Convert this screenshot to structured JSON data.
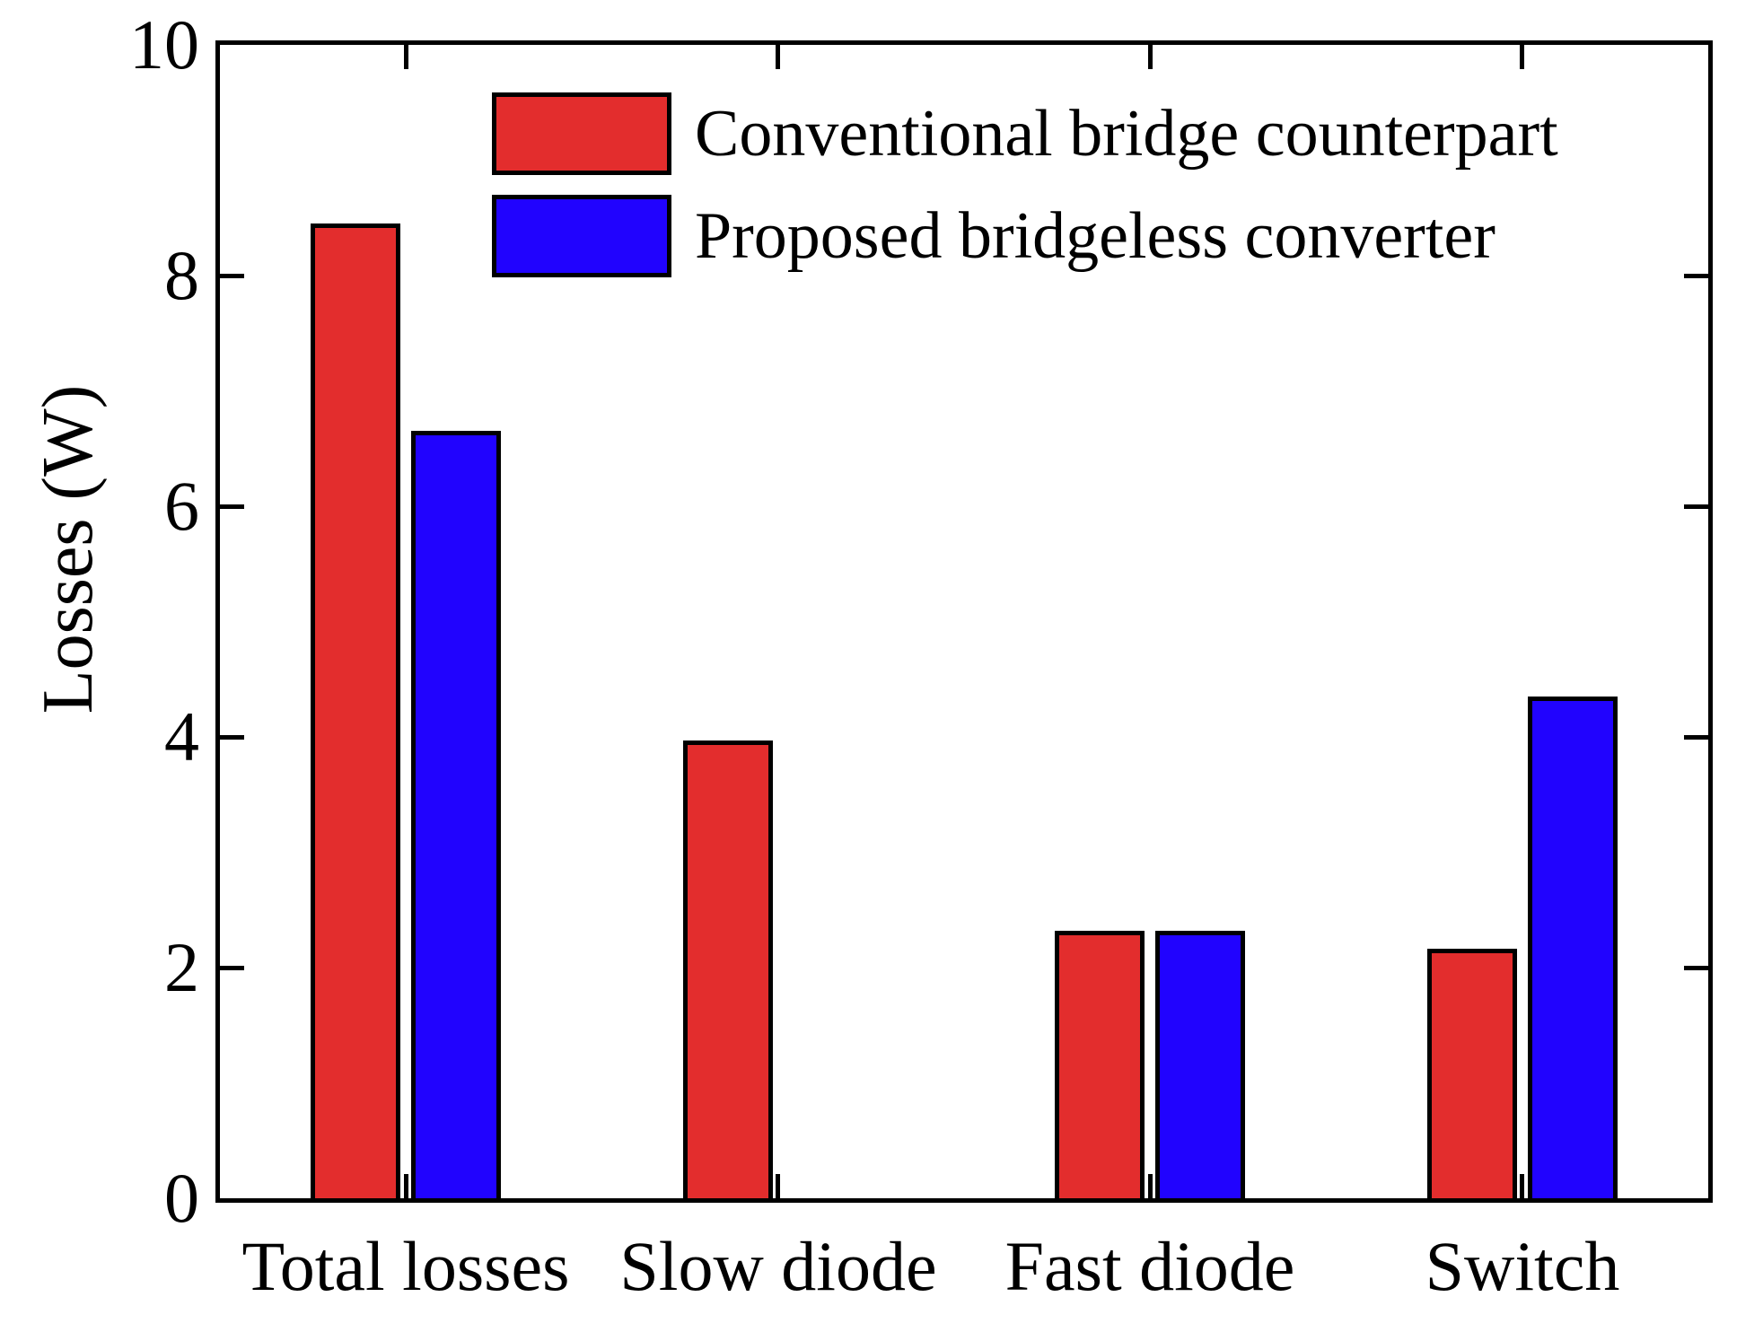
{
  "figure": {
    "background": "#ffffff",
    "axis_color": "#000000"
  },
  "chart_data": {
    "type": "bar",
    "title": "",
    "xlabel": "",
    "ylabel": "Losses (W)",
    "ylim": [
      0,
      10
    ],
    "yticks": [
      0,
      2,
      4,
      6,
      8,
      10
    ],
    "grid": false,
    "legend_position": "upper-left-inside",
    "bar_edge_color": "#000000",
    "categories": [
      "Total losses",
      "Slow diode",
      "Fast diode",
      "Switch"
    ],
    "series": [
      {
        "name": "Conventional bridge counterpart",
        "color": "#e32d2d",
        "values": [
          8.45,
          3.97,
          2.32,
          2.16
        ]
      },
      {
        "name": "Proposed bridgeless converter",
        "color": "#2103fe",
        "values": [
          6.65,
          0,
          2.32,
          4.35
        ]
      }
    ]
  }
}
